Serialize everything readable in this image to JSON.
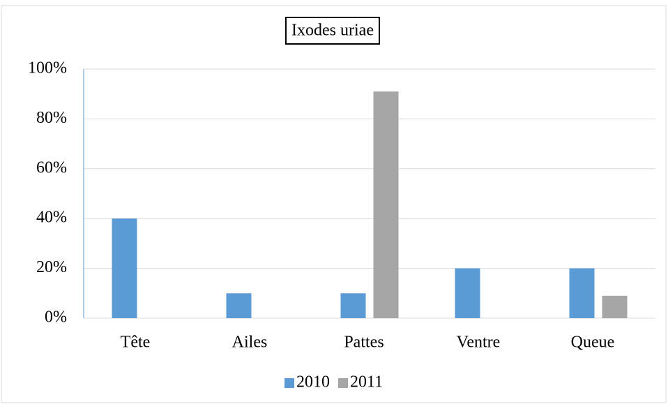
{
  "chart_data": {
    "type": "bar",
    "title": "Ixodes uriae",
    "categories": [
      "Tête",
      "Ailes",
      "Pattes",
      "Ventre",
      "Queue"
    ],
    "series": [
      {
        "name": "2010",
        "color": "#5b9bd5",
        "values": [
          40,
          10,
          10,
          20,
          20
        ]
      },
      {
        "name": "2011",
        "color": "#a5a5a5",
        "values": [
          0,
          0,
          91,
          0,
          9
        ]
      }
    ],
    "ylim": [
      0,
      100
    ],
    "yticks": [
      {
        "value": 0,
        "label": "0%"
      },
      {
        "value": 20,
        "label": "20%"
      },
      {
        "value": 40,
        "label": "40%"
      },
      {
        "value": 60,
        "label": "60%"
      },
      {
        "value": 80,
        "label": "80%"
      },
      {
        "value": 100,
        "label": "100%"
      }
    ],
    "grid": true,
    "legend": "bottom"
  }
}
